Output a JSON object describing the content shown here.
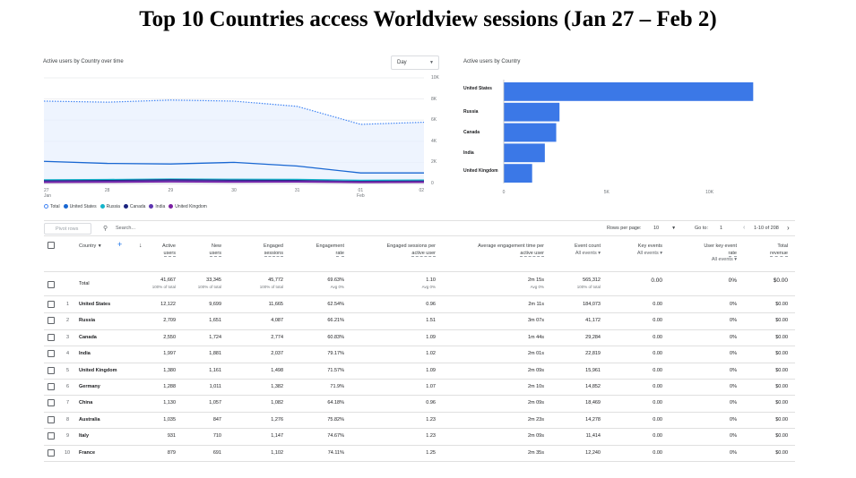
{
  "title": "Top 10 Countries access Worldview sessions (Jan 27 – Feb 2)",
  "line_card": {
    "label": "Active users by Country over time",
    "dropdown_value": "Day",
    "y_ticks": [
      "10K",
      "8K",
      "6K",
      "4K",
      "2K",
      "0"
    ],
    "x_ticks": [
      {
        "day": "27",
        "month": "Jan"
      },
      {
        "day": "28",
        "month": ""
      },
      {
        "day": "29",
        "month": ""
      },
      {
        "day": "30",
        "month": ""
      },
      {
        "day": "31",
        "month": ""
      },
      {
        "day": "01",
        "month": "Feb"
      },
      {
        "day": "02",
        "month": ""
      }
    ],
    "legend": [
      "Total",
      "United States",
      "Russia",
      "Canada",
      "India",
      "United Kingdom"
    ]
  },
  "bar_card": {
    "label": "Active users by Country",
    "categories": [
      "United States",
      "Russia",
      "Canada",
      "India",
      "United Kingdom"
    ],
    "x_ticks": [
      "0",
      "5K",
      "10K"
    ]
  },
  "chart_data": [
    {
      "type": "line",
      "title": "Active users by Country over time",
      "x": [
        "Jan 27",
        "Jan 28",
        "Jan 29",
        "Jan 30",
        "Jan 31",
        "Feb 01",
        "Feb 02"
      ],
      "ylim": [
        0,
        10000
      ],
      "series": [
        {
          "name": "Total",
          "color": "#4285f4",
          "style": "dotted",
          "values": [
            7800,
            7700,
            7900,
            7800,
            7300,
            5600,
            5800
          ]
        },
        {
          "name": "United States",
          "color": "#1967d2",
          "values": [
            2100,
            1900,
            1850,
            2000,
            1650,
            1000,
            1000
          ]
        },
        {
          "name": "Russia",
          "color": "#12b5cb",
          "values": [
            350,
            380,
            420,
            400,
            390,
            300,
            330
          ]
        },
        {
          "name": "Canada",
          "color": "#1a237e",
          "values": [
            250,
            280,
            350,
            300,
            280,
            200,
            230
          ]
        },
        {
          "name": "India",
          "color": "#5e35b1",
          "values": [
            180,
            200,
            250,
            220,
            210,
            160,
            170
          ]
        },
        {
          "name": "United Kingdom",
          "color": "#7b1fa2",
          "values": [
            100,
            120,
            150,
            130,
            140,
            90,
            110
          ]
        }
      ]
    },
    {
      "type": "bar",
      "orientation": "horizontal",
      "title": "Active users by Country",
      "categories": [
        "United States",
        "Russia",
        "Canada",
        "India",
        "United Kingdom"
      ],
      "values": [
        12122,
        2709,
        2550,
        1997,
        1380
      ],
      "xlim": [
        0,
        12500
      ],
      "color": "#3b78e7"
    }
  ],
  "toolbar": {
    "pivot_label": "Pivot rows",
    "search_placeholder": "Search...",
    "rows_per_page_label": "Rows per page:",
    "rows_per_page_value": "10",
    "goto_label": "Go to:",
    "goto_value": "1",
    "range_label": "1-10 of 208"
  },
  "table": {
    "headers": {
      "country": "Country",
      "active_users": [
        "Active",
        "users"
      ],
      "new_users": [
        "New",
        "users"
      ],
      "engaged_sessions": [
        "Engaged",
        "sessions"
      ],
      "engagement_rate": [
        "Engagement",
        "rate"
      ],
      "engaged_per_user": [
        "Engaged sessions per",
        "active user"
      ],
      "avg_time": [
        "Average engagement time per",
        "active user"
      ],
      "event_count": [
        "Event count",
        "All events"
      ],
      "key_events": [
        "Key events",
        "All events"
      ],
      "user_key_rate": [
        "User key event",
        "rate",
        "All events"
      ],
      "total_revenue": [
        "Total",
        "revenue"
      ]
    },
    "total": {
      "label": "Total",
      "active_users": "41,667",
      "active_users_sub": "100% of total",
      "new_users": "33,345",
      "new_users_sub": "100% of total",
      "engaged_sessions": "45,772",
      "engaged_sessions_sub": "100% of total",
      "engagement_rate": "69.63%",
      "engagement_rate_sub": "Avg 0%",
      "engaged_per_user": "1.10",
      "engaged_per_user_sub": "Avg 0%",
      "avg_time": "2m 15s",
      "avg_time_sub": "Avg 0%",
      "event_count": "565,312",
      "event_count_sub": "100% of total",
      "key_events": "0.00",
      "user_key_rate": "0%",
      "total_revenue": "$0.00"
    },
    "rows": [
      {
        "rank": "1",
        "country": "United States",
        "active_users": "12,122",
        "new_users": "9,699",
        "engaged_sessions": "11,665",
        "engagement_rate": "62.54%",
        "engaged_per_user": "0.96",
        "avg_time": "2m 11s",
        "event_count": "184,073",
        "key_events": "0.00",
        "user_key_rate": "0%",
        "total_revenue": "$0.00"
      },
      {
        "rank": "2",
        "country": "Russia",
        "active_users": "2,709",
        "new_users": "1,651",
        "engaged_sessions": "4,087",
        "engagement_rate": "66.21%",
        "engaged_per_user": "1.51",
        "avg_time": "3m 07s",
        "event_count": "41,172",
        "key_events": "0.00",
        "user_key_rate": "0%",
        "total_revenue": "$0.00"
      },
      {
        "rank": "3",
        "country": "Canada",
        "active_users": "2,550",
        "new_users": "1,724",
        "engaged_sessions": "2,774",
        "engagement_rate": "60.83%",
        "engaged_per_user": "1.09",
        "avg_time": "1m 44s",
        "event_count": "29,284",
        "key_events": "0.00",
        "user_key_rate": "0%",
        "total_revenue": "$0.00"
      },
      {
        "rank": "4",
        "country": "India",
        "active_users": "1,997",
        "new_users": "1,881",
        "engaged_sessions": "2,037",
        "engagement_rate": "79.17%",
        "engaged_per_user": "1.02",
        "avg_time": "2m 01s",
        "event_count": "22,819",
        "key_events": "0.00",
        "user_key_rate": "0%",
        "total_revenue": "$0.00"
      },
      {
        "rank": "5",
        "country": "United Kingdom",
        "active_users": "1,380",
        "new_users": "1,161",
        "engaged_sessions": "1,498",
        "engagement_rate": "71.57%",
        "engaged_per_user": "1.09",
        "avg_time": "2m 09s",
        "event_count": "15,961",
        "key_events": "0.00",
        "user_key_rate": "0%",
        "total_revenue": "$0.00"
      },
      {
        "rank": "6",
        "country": "Germany",
        "active_users": "1,288",
        "new_users": "1,011",
        "engaged_sessions": "1,382",
        "engagement_rate": "71.9%",
        "engaged_per_user": "1.07",
        "avg_time": "2m 10s",
        "event_count": "14,852",
        "key_events": "0.00",
        "user_key_rate": "0%",
        "total_revenue": "$0.00"
      },
      {
        "rank": "7",
        "country": "China",
        "active_users": "1,130",
        "new_users": "1,057",
        "engaged_sessions": "1,082",
        "engagement_rate": "64.18%",
        "engaged_per_user": "0.96",
        "avg_time": "2m 09s",
        "event_count": "18,469",
        "key_events": "0.00",
        "user_key_rate": "0%",
        "total_revenue": "$0.00"
      },
      {
        "rank": "8",
        "country": "Australia",
        "active_users": "1,035",
        "new_users": "847",
        "engaged_sessions": "1,276",
        "engagement_rate": "75.82%",
        "engaged_per_user": "1.23",
        "avg_time": "2m 23s",
        "event_count": "14,278",
        "key_events": "0.00",
        "user_key_rate": "0%",
        "total_revenue": "$0.00"
      },
      {
        "rank": "9",
        "country": "Italy",
        "active_users": "931",
        "new_users": "710",
        "engaged_sessions": "1,147",
        "engagement_rate": "74.67%",
        "engaged_per_user": "1.23",
        "avg_time": "2m 09s",
        "event_count": "11,414",
        "key_events": "0.00",
        "user_key_rate": "0%",
        "total_revenue": "$0.00"
      },
      {
        "rank": "10",
        "country": "France",
        "active_users": "879",
        "new_users": "691",
        "engaged_sessions": "1,102",
        "engagement_rate": "74.11%",
        "engaged_per_user": "1.25",
        "avg_time": "2m 35s",
        "event_count": "12,240",
        "key_events": "0.00",
        "user_key_rate": "0%",
        "total_revenue": "$0.00"
      }
    ]
  }
}
